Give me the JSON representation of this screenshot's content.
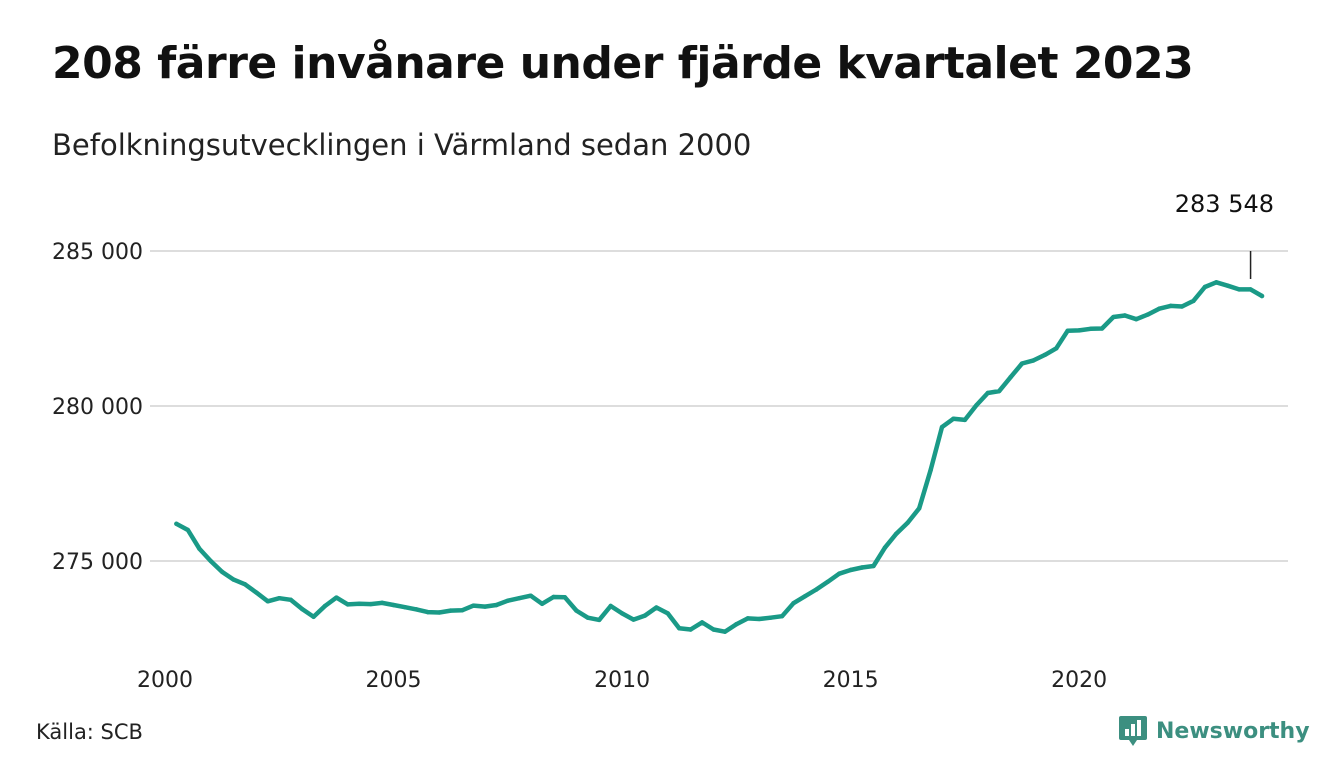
{
  "header": {
    "title": "208 färre invånare under fjärde kvartalet 2023",
    "subtitle": "Befolkningsutvecklingen i Värmland sedan 2000"
  },
  "footer": {
    "source": "Källa: SCB",
    "brand": "Newsworthy",
    "brand_icon": "bar-chart-speech-bubble-icon"
  },
  "colors": {
    "line": "#1a9a87",
    "grid": "#dddddd",
    "brand": "#3c8f80"
  },
  "chart_data": {
    "type": "line",
    "title": "208 färre invånare under fjärde kvartalet 2023",
    "subtitle": "Befolkningsutvecklingen i Värmland sedan 2000",
    "xlabel": "",
    "ylabel": "",
    "ylim": [
      272000,
      286000
    ],
    "xlim": [
      2000,
      2024.5
    ],
    "grid": true,
    "legend": "none",
    "y_ticks": [
      {
        "value": 275000,
        "label": "275 000"
      },
      {
        "value": 280000,
        "label": "280 000"
      },
      {
        "value": 285000,
        "label": "285 000"
      }
    ],
    "x_ticks": [
      {
        "value": 2000,
        "label": "2000"
      },
      {
        "value": 2005,
        "label": "2005"
      },
      {
        "value": 2010,
        "label": "2010"
      },
      {
        "value": 2015,
        "label": "2015"
      },
      {
        "value": 2020,
        "label": "2020"
      }
    ],
    "annotation": {
      "label": "283 548",
      "x": 2023.75,
      "y": 283548
    },
    "series": [
      {
        "values": [
          [
            2000.25,
            276200
          ],
          [
            2000.5,
            276000
          ],
          [
            2000.75,
            275400
          ],
          [
            2001.0,
            275000
          ],
          [
            2001.25,
            274650
          ],
          [
            2001.5,
            274400
          ],
          [
            2001.75,
            274250
          ],
          [
            2002.0,
            273980
          ],
          [
            2002.25,
            273700
          ],
          [
            2002.5,
            273800
          ],
          [
            2002.75,
            273750
          ],
          [
            2003.0,
            273450
          ],
          [
            2003.25,
            273200
          ],
          [
            2003.5,
            273550
          ],
          [
            2003.75,
            273820
          ],
          [
            2004.0,
            273600
          ],
          [
            2004.25,
            273620
          ],
          [
            2004.5,
            273610
          ],
          [
            2004.75,
            273650
          ],
          [
            2005.0,
            273580
          ],
          [
            2005.25,
            273510
          ],
          [
            2005.5,
            273440
          ],
          [
            2005.75,
            273350
          ],
          [
            2006.0,
            273340
          ],
          [
            2006.25,
            273400
          ],
          [
            2006.5,
            273410
          ],
          [
            2006.75,
            273560
          ],
          [
            2007.0,
            273530
          ],
          [
            2007.25,
            273580
          ],
          [
            2007.5,
            273720
          ],
          [
            2007.75,
            273800
          ],
          [
            2008.0,
            273880
          ],
          [
            2008.25,
            273620
          ],
          [
            2008.5,
            273840
          ],
          [
            2008.75,
            273830
          ],
          [
            2009.0,
            273400
          ],
          [
            2009.25,
            273170
          ],
          [
            2009.5,
            273100
          ],
          [
            2009.75,
            273550
          ],
          [
            2010.0,
            273310
          ],
          [
            2010.25,
            273110
          ],
          [
            2010.5,
            273240
          ],
          [
            2010.75,
            273500
          ],
          [
            2011.0,
            273310
          ],
          [
            2011.25,
            272830
          ],
          [
            2011.5,
            272790
          ],
          [
            2011.75,
            273020
          ],
          [
            2012.0,
            272790
          ],
          [
            2012.25,
            272720
          ],
          [
            2012.5,
            272960
          ],
          [
            2012.75,
            273150
          ],
          [
            2013.0,
            273130
          ],
          [
            2013.25,
            273170
          ],
          [
            2013.5,
            273220
          ],
          [
            2013.75,
            273640
          ],
          [
            2014.0,
            273860
          ],
          [
            2014.25,
            274080
          ],
          [
            2014.5,
            274330
          ],
          [
            2014.75,
            274590
          ],
          [
            2015.0,
            274710
          ],
          [
            2015.25,
            274790
          ],
          [
            2015.5,
            274840
          ],
          [
            2015.75,
            275430
          ],
          [
            2016.0,
            275880
          ],
          [
            2016.25,
            276240
          ],
          [
            2016.5,
            276700
          ],
          [
            2016.75,
            277930
          ],
          [
            2017.0,
            279320
          ],
          [
            2017.25,
            279590
          ],
          [
            2017.5,
            279550
          ],
          [
            2017.75,
            280020
          ],
          [
            2018.0,
            280420
          ],
          [
            2018.25,
            280480
          ],
          [
            2018.5,
            280930
          ],
          [
            2018.75,
            281370
          ],
          [
            2019.0,
            281470
          ],
          [
            2019.25,
            281650
          ],
          [
            2019.5,
            281860
          ],
          [
            2019.75,
            282430
          ],
          [
            2020.0,
            282440
          ],
          [
            2020.25,
            282490
          ],
          [
            2020.5,
            282500
          ],
          [
            2020.75,
            282870
          ],
          [
            2021.0,
            282920
          ],
          [
            2021.25,
            282800
          ],
          [
            2021.5,
            282950
          ],
          [
            2021.75,
            283140
          ],
          [
            2022.0,
            283230
          ],
          [
            2022.25,
            283210
          ],
          [
            2022.5,
            283390
          ],
          [
            2022.75,
            283840
          ],
          [
            2023.0,
            283990
          ],
          [
            2023.25,
            283880
          ],
          [
            2023.5,
            283760
          ],
          [
            2023.75,
            283760
          ],
          [
            2024.0,
            283548
          ]
        ]
      }
    ]
  }
}
